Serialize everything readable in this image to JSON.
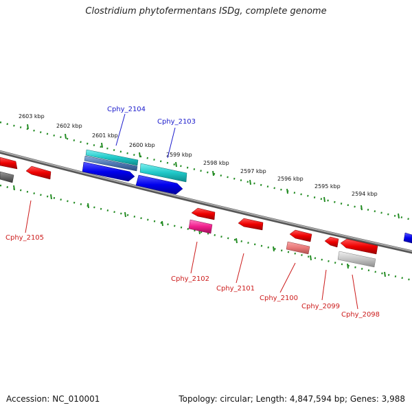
{
  "title": "Clostridium phytofermentans ISDg, complete genome",
  "footer": {
    "accession": "Accession: NC_010001",
    "topology": "Topology: circular; Length: 4,847,594 bp; Genes: 3,988"
  },
  "colors": {
    "backbone": "#808080",
    "ruler": "#228b22",
    "forward_label": "#1a1acc",
    "reverse_label": "#cc1a1a"
  },
  "ruler_labels": [
    "2603 kbp",
    "2602 kbp",
    "2601 kbp",
    "2600 kbp",
    "2599 kbp",
    "2598 kbp",
    "2597 kbp",
    "2596 kbp",
    "2595 kbp",
    "2594 kbp"
  ],
  "genes": [
    {
      "label": "Cphy_2104",
      "strand": "forward"
    },
    {
      "label": "Cphy_2103",
      "strand": "forward"
    },
    {
      "label": "Cphy_2105",
      "strand": "reverse"
    },
    {
      "label": "Cphy_2102",
      "strand": "reverse"
    },
    {
      "label": "Cphy_2101",
      "strand": "reverse"
    },
    {
      "label": "Cphy_2100",
      "strand": "reverse"
    },
    {
      "label": "Cphy_2099",
      "strand": "reverse"
    },
    {
      "label": "Cphy_2098",
      "strand": "reverse"
    }
  ]
}
